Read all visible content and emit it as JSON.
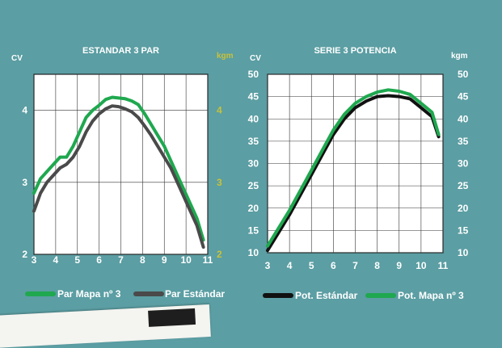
{
  "colors": {
    "background": "#5b9ea3",
    "plot_bg": "#ffffff",
    "green": "#1fa84f",
    "gray": "#4a4a4a",
    "black": "#111111",
    "kgm_left_axis": "#c9c23a",
    "white": "#ffffff"
  },
  "chart_data": [
    {
      "type": "line",
      "title": "ESTANDAR 3 PAR",
      "ylabel": "CV",
      "y2label": "kgm",
      "xlim": [
        3,
        11
      ],
      "ylim": [
        2,
        4.5
      ],
      "xticks": [
        3,
        4,
        5,
        6,
        7,
        8,
        9,
        10,
        11
      ],
      "yticks": [
        2,
        3,
        4
      ],
      "y2ticks": [
        2,
        3,
        4
      ],
      "grid": true,
      "legend_position": "bottom",
      "series": [
        {
          "name": "Par Mapa nº 3",
          "color": "#1fa84f",
          "x": [
            3.0,
            3.3,
            3.6,
            3.9,
            4.2,
            4.5,
            4.8,
            5.1,
            5.4,
            5.7,
            6.0,
            6.3,
            6.6,
            6.9,
            7.2,
            7.5,
            7.8,
            8.1,
            8.4,
            8.7,
            9.0,
            9.3,
            9.6,
            9.9,
            10.2,
            10.5,
            10.8
          ],
          "values": [
            2.85,
            3.05,
            3.15,
            3.25,
            3.35,
            3.35,
            3.5,
            3.7,
            3.9,
            4.0,
            4.07,
            4.15,
            4.18,
            4.17,
            4.16,
            4.13,
            4.08,
            3.95,
            3.8,
            3.65,
            3.5,
            3.3,
            3.1,
            2.9,
            2.7,
            2.5,
            2.2
          ]
        },
        {
          "name": "Par Estándar",
          "color": "#4a4a4a",
          "x": [
            3.0,
            3.3,
            3.6,
            3.9,
            4.2,
            4.5,
            4.8,
            5.1,
            5.4,
            5.7,
            6.0,
            6.3,
            6.6,
            6.9,
            7.2,
            7.5,
            7.8,
            8.1,
            8.4,
            8.7,
            9.0,
            9.3,
            9.6,
            9.9,
            10.2,
            10.5,
            10.8
          ],
          "values": [
            2.6,
            2.85,
            3.0,
            3.1,
            3.2,
            3.25,
            3.35,
            3.5,
            3.7,
            3.85,
            3.95,
            4.02,
            4.06,
            4.05,
            4.02,
            3.98,
            3.9,
            3.78,
            3.65,
            3.5,
            3.35,
            3.2,
            3.0,
            2.8,
            2.6,
            2.4,
            2.1
          ]
        }
      ]
    },
    {
      "type": "line",
      "title": "SERIE 3 POTENCIA",
      "ylabel": "CV",
      "y2label": "kgm",
      "xlim": [
        3,
        11
      ],
      "ylim": [
        10,
        50
      ],
      "xticks": [
        3,
        4,
        5,
        6,
        7,
        8,
        9,
        10,
        11
      ],
      "yticks": [
        10,
        15,
        20,
        25,
        30,
        35,
        40,
        45,
        50
      ],
      "y2ticks": [
        10,
        15,
        20,
        25,
        30,
        35,
        40,
        45,
        50
      ],
      "grid": true,
      "legend_position": "bottom",
      "series": [
        {
          "name": "Pot. Estándar",
          "color": "#111111",
          "x": [
            3.0,
            3.5,
            4.0,
            4.5,
            5.0,
            5.5,
            6.0,
            6.5,
            7.0,
            7.5,
            8.0,
            8.5,
            9.0,
            9.5,
            10.0,
            10.5,
            10.8
          ],
          "values": [
            10.5,
            14.5,
            18.5,
            23.0,
            27.5,
            32.0,
            36.5,
            40.0,
            42.5,
            44.0,
            45.0,
            45.2,
            45.0,
            44.5,
            42.5,
            40.5,
            36.0
          ]
        },
        {
          "name": "Pot. Mapa nº 3",
          "color": "#1fa84f",
          "x": [
            3.0,
            3.5,
            4.0,
            4.5,
            5.0,
            5.5,
            6.0,
            6.5,
            7.0,
            7.5,
            8.0,
            8.5,
            9.0,
            9.5,
            10.0,
            10.5,
            10.8
          ],
          "values": [
            11.5,
            15.5,
            19.5,
            24.0,
            28.5,
            33.0,
            37.5,
            41.0,
            43.5,
            45.0,
            46.0,
            46.5,
            46.2,
            45.5,
            43.5,
            41.5,
            36.5
          ]
        }
      ]
    }
  ]
}
